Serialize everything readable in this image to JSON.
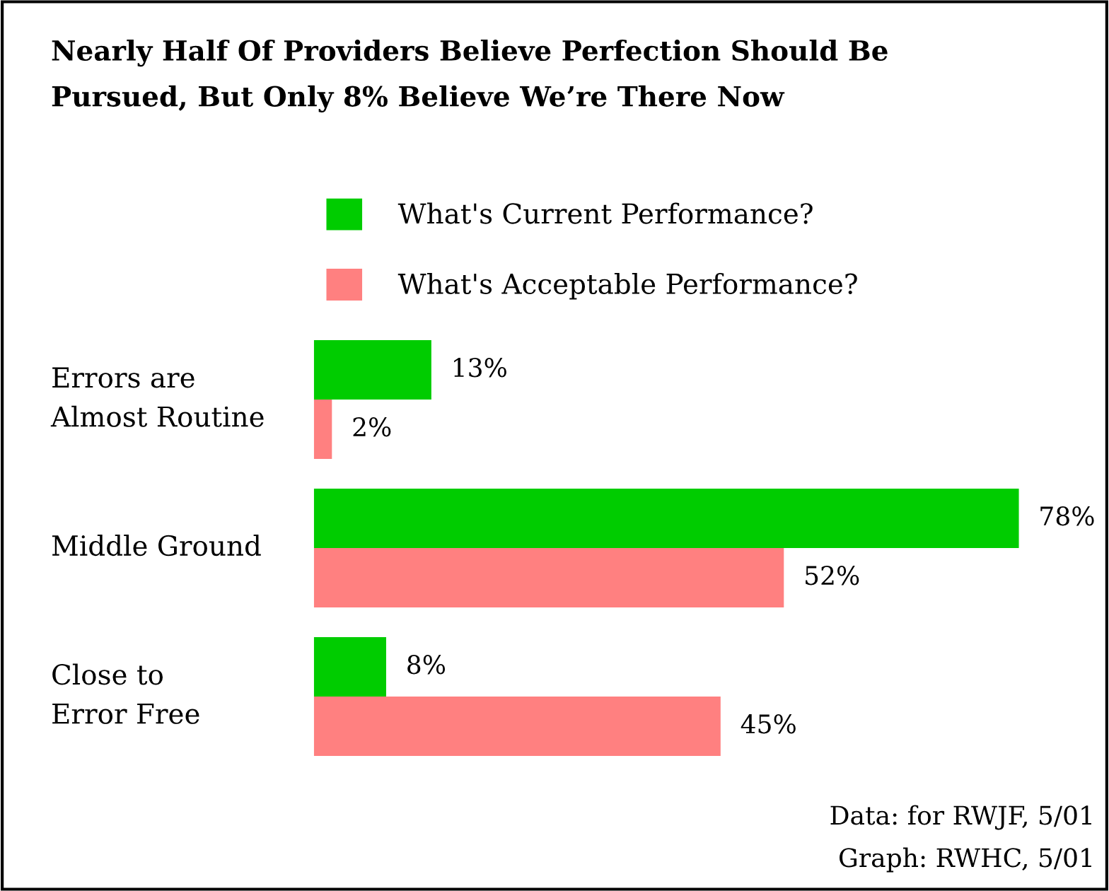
{
  "chart_data": {
    "type": "bar",
    "orientation": "horizontal",
    "title": "Nearly Half Of Providers Believe Perfection Should Be\nPursued, But Only 8% Believe We’re There Now",
    "categories": [
      "Errors are\nAlmost Routine",
      "Middle Ground",
      "Close to\nError Free"
    ],
    "series": [
      {
        "name": "What's Current Performance?",
        "color": "#00cc00",
        "values": [
          13,
          78,
          8
        ],
        "value_labels": [
          "13%",
          "78%",
          "8%"
        ]
      },
      {
        "name": "What's Acceptable Performance?",
        "color": "#ff8080",
        "values": [
          2,
          52,
          45
        ],
        "value_labels": [
          "2%",
          "52%",
          "45%"
        ]
      }
    ],
    "legend": "top",
    "annotations": [
      "Data: for RWJF, 5/01",
      "Graph: RWHC, 5/01"
    ]
  }
}
